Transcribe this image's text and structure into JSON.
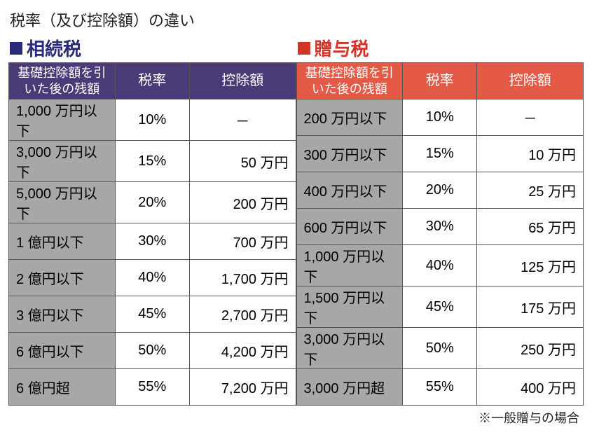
{
  "page_title": "税率（及び控除額）の違い",
  "footnote": "※一般贈与の場合",
  "colors": {
    "inheritance_header": "#4a3a78",
    "inheritance_accent": "#2a2a7a",
    "gift_header": "#e45a47",
    "gift_accent": "#d0342a",
    "bracket_bg": "#a7a7a7",
    "border": "#555555",
    "text": "#222222",
    "white": "#ffffff"
  },
  "header_labels": {
    "bracket": "基礎控除額を引いた後の残額",
    "rate": "税率",
    "deduction": "控除額"
  },
  "inheritance": {
    "title": "相続税",
    "rows": [
      {
        "bracket": "1,000 万円以下",
        "rate": "10%",
        "deduction": "－"
      },
      {
        "bracket": "3,000 万円以下",
        "rate": "15%",
        "deduction": "50 万円"
      },
      {
        "bracket": "5,000 万円以下",
        "rate": "20%",
        "deduction": "200 万円"
      },
      {
        "bracket": "1 億円以下",
        "rate": "30%",
        "deduction": "700 万円"
      },
      {
        "bracket": "2 億円以下",
        "rate": "40%",
        "deduction": "1,700 万円"
      },
      {
        "bracket": "3 億円以下",
        "rate": "45%",
        "deduction": "2,700 万円"
      },
      {
        "bracket": "6 億円以下",
        "rate": "50%",
        "deduction": "4,200 万円"
      },
      {
        "bracket": "6 億円超",
        "rate": "55%",
        "deduction": "7,200 万円"
      }
    ]
  },
  "gift": {
    "title": "贈与税",
    "rows": [
      {
        "bracket": "200 万円以下",
        "rate": "10%",
        "deduction": "－"
      },
      {
        "bracket": "300 万円以下",
        "rate": "15%",
        "deduction": "10 万円"
      },
      {
        "bracket": "400 万円以下",
        "rate": "20%",
        "deduction": "25 万円"
      },
      {
        "bracket": "600 万円以下",
        "rate": "30%",
        "deduction": "65 万円"
      },
      {
        "bracket": "1,000 万円以下",
        "rate": "40%",
        "deduction": "125 万円"
      },
      {
        "bracket": "1,500 万円以下",
        "rate": "45%",
        "deduction": "175 万円"
      },
      {
        "bracket": "3,000 万円以下",
        "rate": "50%",
        "deduction": "250 万円"
      },
      {
        "bracket": "3,000 万円超",
        "rate": "55%",
        "deduction": "400 万円"
      }
    ]
  }
}
